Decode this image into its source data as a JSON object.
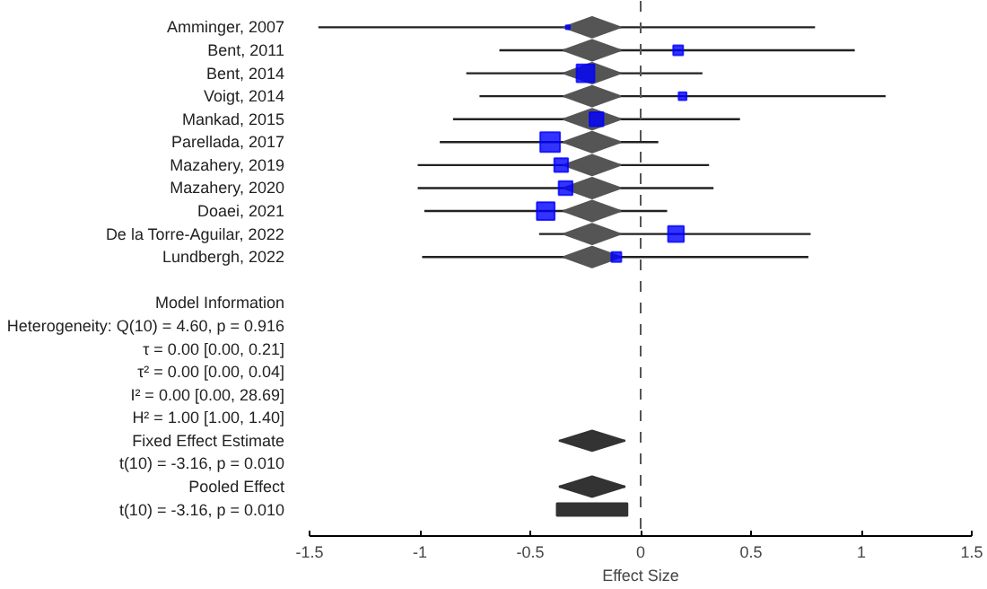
{
  "chart_data": {
    "type": "scatter",
    "orientation": "horizontal",
    "xlabel": "Effect Size",
    "categories": [
      "Amminger, 2007",
      "Bent, 2011",
      "Bent, 2014",
      "Voigt, 2014",
      "Mankad, 2015",
      "Parellada, 2017",
      "Mazahery, 2019",
      "Mazahery, 2020",
      "Doaei, 2021",
      "De la Torre-Aguilar, 2022",
      "Lundbergh, 2022",
      null,
      "Model Information",
      "Heterogeneity: Q(10) = 4.60, p = 0.916",
      "τ = 0.00 [0.00, 0.21]",
      "τ² = 0.00 [0.00, 0.04]",
      "I² = 0.00 [0.00, 28.69]",
      "H² = 1.00 [1.00, 1.40]",
      "Fixed Effect Estimate",
      "t(10) = -3.16, p = 0.010",
      "Pooled Effect",
      "t(10) = -3.16, p = 0.010"
    ],
    "series": [
      {
        "marker": "diamond",
        "colors": [
          "#555555",
          "#555555",
          "#555555",
          "#555555",
          "#555555",
          "#555555",
          "#555555",
          "#555555",
          "#555555",
          "#555555",
          "#555555",
          null,
          null,
          null,
          null,
          null,
          null,
          null,
          "#333333",
          null,
          "#333333",
          null
        ],
        "values": [
          -0.22,
          -0.22,
          -0.22,
          -0.22,
          -0.22,
          -0.22,
          -0.22,
          -0.22,
          -0.22,
          -0.22,
          -0.22,
          null,
          null,
          null,
          null,
          null,
          null,
          null,
          -0.22,
          null,
          -0.22,
          null
        ],
        "errors": [
          [
            -0.35,
            -0.09
          ],
          [
            -0.35,
            -0.09
          ],
          [
            -0.35,
            -0.09
          ],
          [
            -0.35,
            -0.09
          ],
          [
            -0.35,
            -0.09
          ],
          [
            -0.35,
            -0.09
          ],
          [
            -0.35,
            -0.09
          ],
          [
            -0.35,
            -0.09
          ],
          [
            -0.35,
            -0.09
          ],
          [
            -0.35,
            -0.09
          ],
          [
            -0.35,
            -0.09
          ],
          null,
          null,
          null,
          null,
          null,
          null,
          null,
          [
            -0.37,
            -0.07
          ],
          null,
          [
            -0.37,
            -0.07
          ],
          null
        ]
      },
      {
        "type": "bubble",
        "marker": "square",
        "color": "#0000ff",
        "values": [
          -0.33,
          0.17,
          -0.25,
          0.19,
          -0.2,
          -0.41,
          -0.36,
          -0.34,
          -0.43,
          0.16,
          -0.11,
          null,
          null,
          null,
          null,
          null,
          null,
          null,
          null,
          null,
          null,
          null
        ],
        "sizes": [
          0.04,
          0.25,
          0.81,
          0.16,
          0.49,
          1,
          0.49,
          0.49,
          0.81,
          0.64,
          0.25,
          null,
          null,
          null,
          null,
          null,
          null,
          null,
          null,
          null,
          null,
          null
        ],
        "errors": [
          [
            -1.46,
            0.79
          ],
          [
            -0.64,
            0.97
          ],
          [
            -0.79,
            0.28
          ],
          [
            -0.73,
            1.11
          ],
          [
            -0.85,
            0.45
          ],
          [
            -0.91,
            0.08
          ],
          [
            -1.01,
            0.31
          ],
          [
            -1.01,
            0.33
          ],
          [
            -0.98,
            0.12
          ],
          [
            -0.46,
            0.77
          ],
          [
            -0.99,
            0.76
          ],
          null,
          null,
          null,
          null,
          null,
          null,
          null,
          null,
          null,
          null,
          null
        ]
      },
      {
        "type": "bar",
        "color": "#333333",
        "values": [
          null,
          null,
          null,
          null,
          null,
          null,
          null,
          null,
          null,
          null,
          null,
          null,
          null,
          null,
          null,
          null,
          null,
          null,
          null,
          null,
          null,
          0.32
        ],
        "base": [
          null,
          null,
          null,
          null,
          null,
          null,
          null,
          null,
          null,
          null,
          null,
          null,
          null,
          null,
          null,
          null,
          null,
          null,
          null,
          null,
          null,
          -0.38
        ]
      }
    ],
    "xlim": [
      -1.5,
      1.5
    ],
    "xticks": [
      -1.5,
      -1,
      -0.5,
      0,
      0.5,
      1,
      1.5
    ],
    "ref_lines": [
      {
        "axis": "x",
        "value": 0,
        "color": "#555555",
        "line_style": "dashed"
      }
    ],
    "grid": false
  }
}
